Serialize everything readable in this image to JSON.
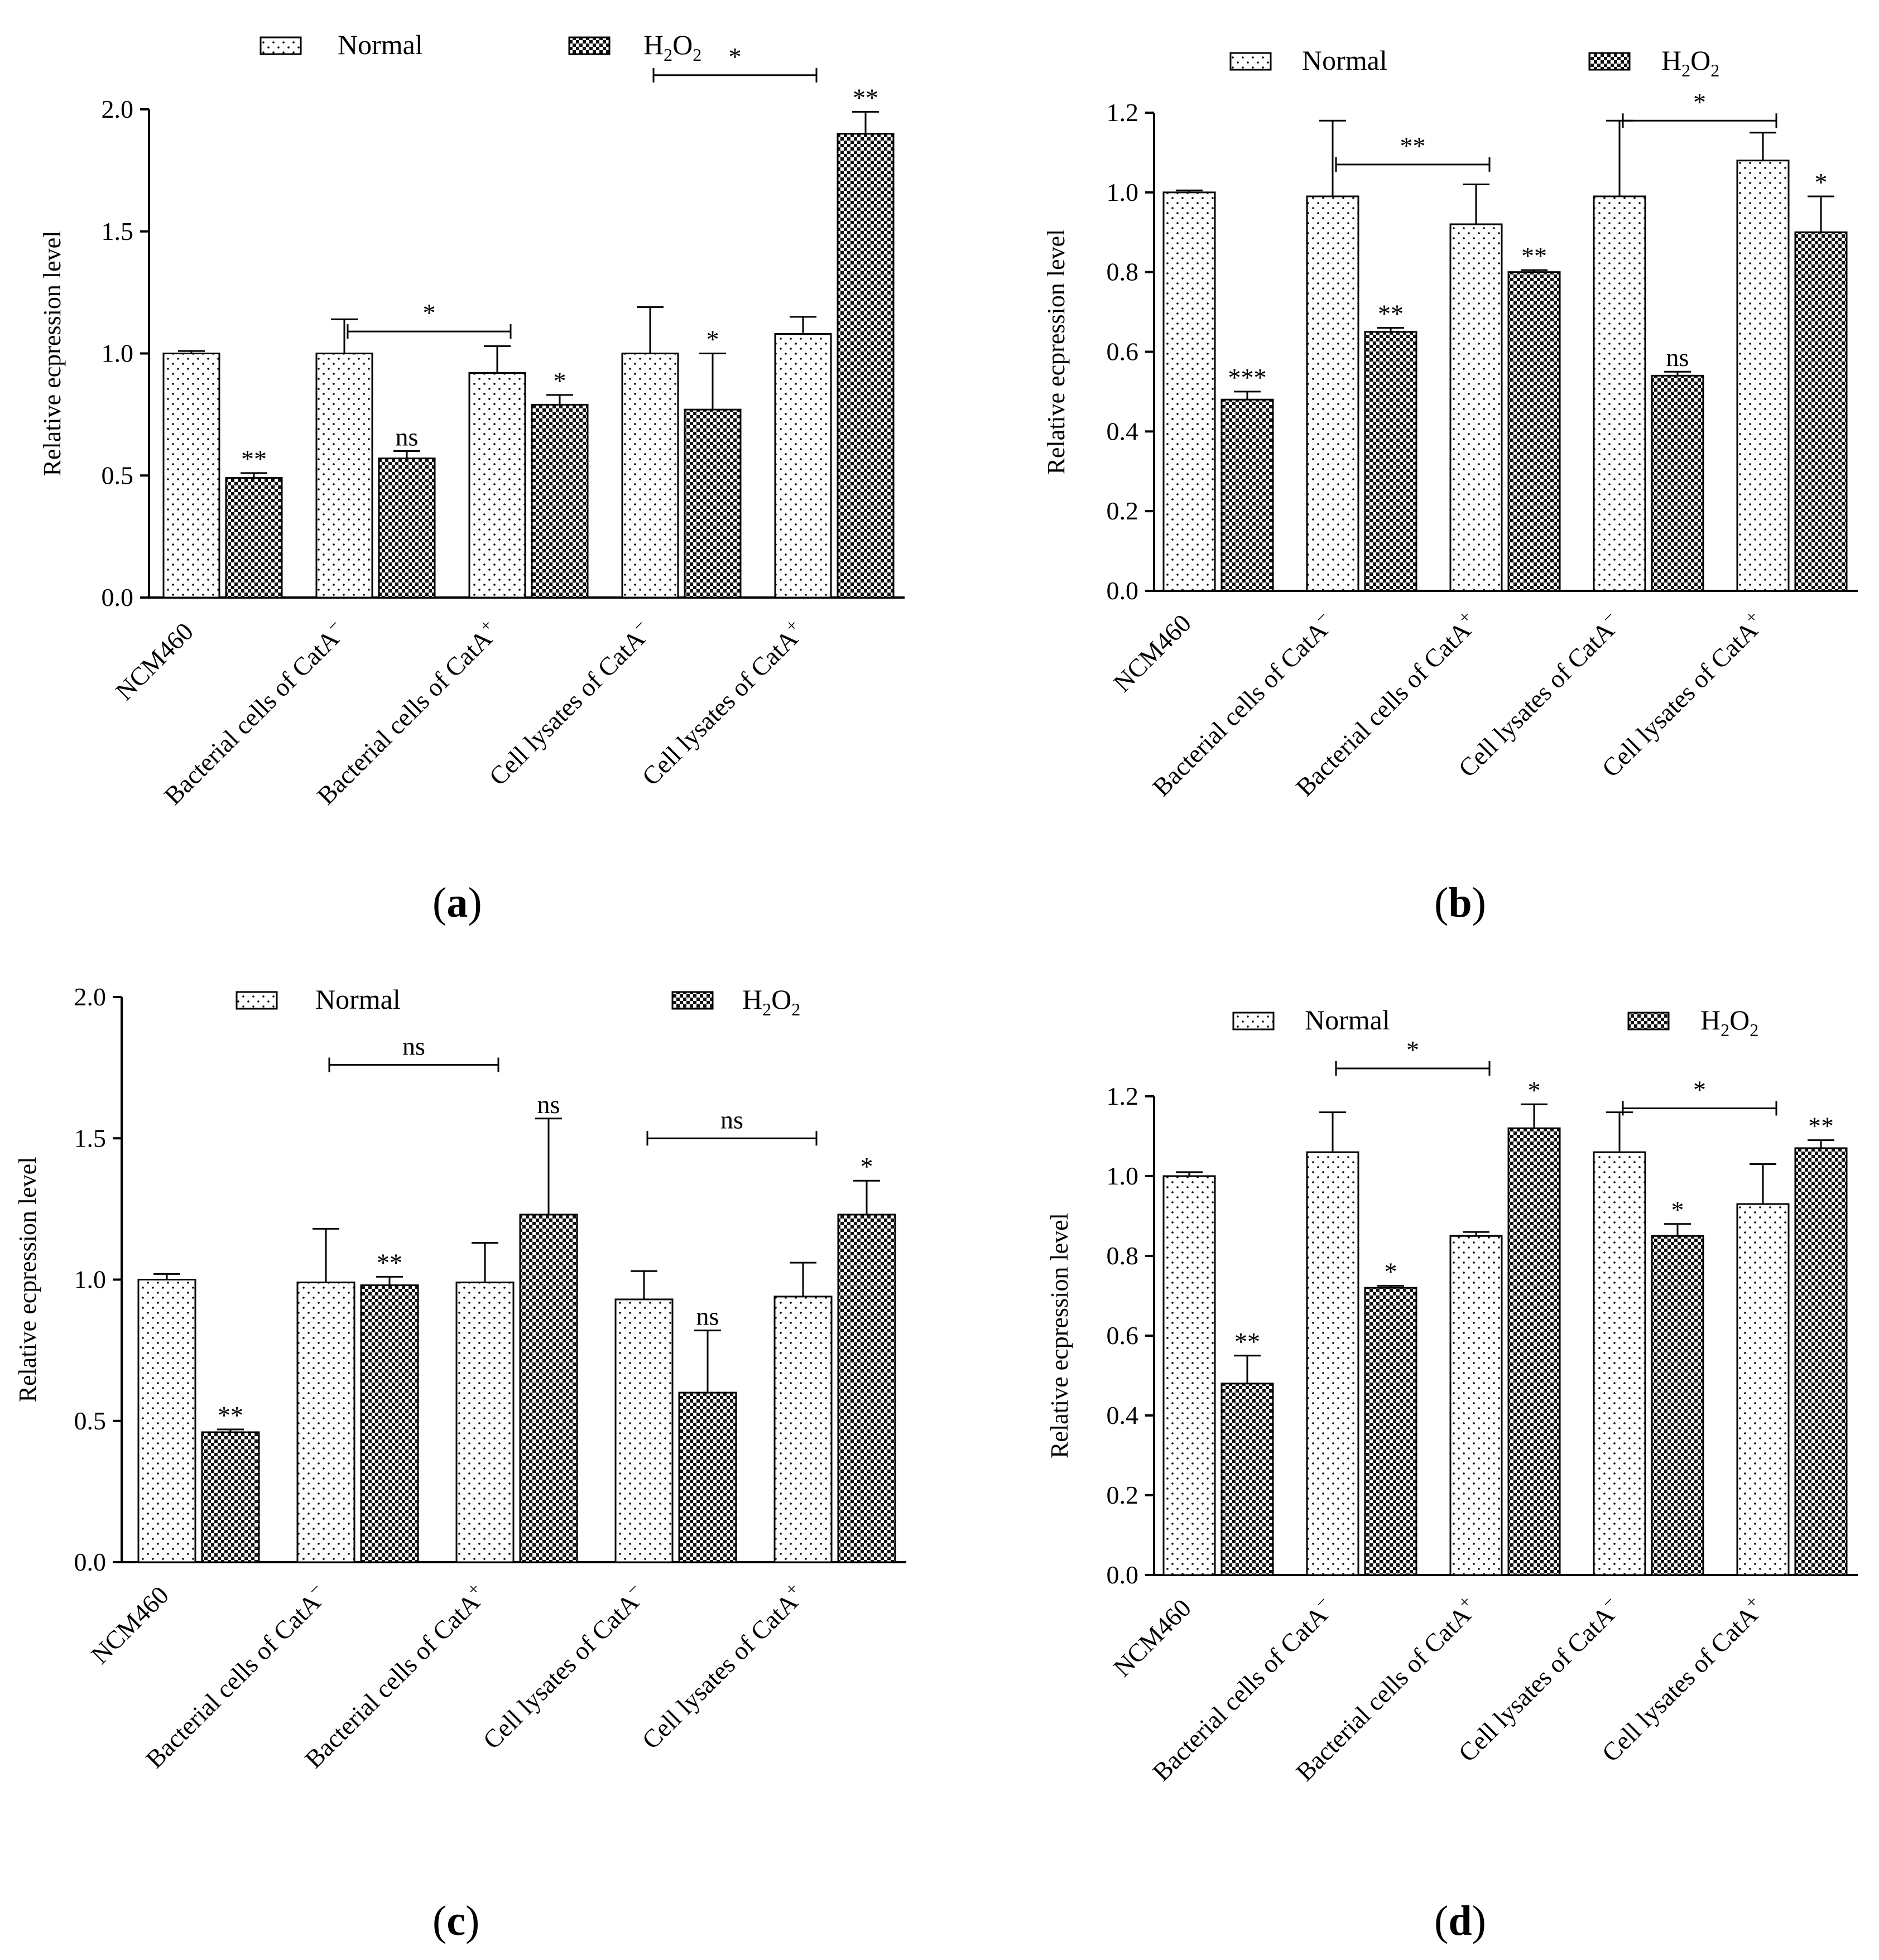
{
  "figure": {
    "panel_labels": {
      "a": {
        "open": "(",
        "letter": "a",
        "close": ")"
      },
      "b": {
        "open": "(",
        "letter": "b",
        "close": ")"
      },
      "c": {
        "open": "(",
        "letter": "c",
        "close": ")"
      },
      "d": {
        "open": "(",
        "letter": "d",
        "close": ")"
      }
    }
  },
  "colors": {
    "axis": "#000000",
    "normal_fill": "#ffffff",
    "h2o2_fill": "#000000"
  },
  "chart_data": [
    {
      "id": "a",
      "type": "bar",
      "ylabel": "Relative ecpression level",
      "ylim": [
        0,
        2.0
      ],
      "yticks": [
        "0.0",
        "0.5",
        "1.0",
        "1.5",
        "2.0"
      ],
      "yticks_values": [
        0,
        0.5,
        1.0,
        1.5,
        2.0
      ],
      "categories": [
        {
          "main": "NCM460",
          "sup": ""
        },
        {
          "main": "Bacterial cells of CatA",
          "sup": "−"
        },
        {
          "main": "Bacterial cells of CatA",
          "sup": "+"
        },
        {
          "main": "Cell lysates of CatA",
          "sup": "−"
        },
        {
          "main": "Cell lysates of CatA",
          "sup": "+"
        }
      ],
      "legend": {
        "normal": "Normal",
        "h2o2": {
          "base": "H",
          "sub1": "2",
          "mid": "O",
          "sub2": "2"
        }
      },
      "series": [
        {
          "name": "Normal",
          "values": [
            1.0,
            1.0,
            0.92,
            1.0,
            1.08
          ],
          "errors": [
            0.01,
            0.14,
            0.11,
            0.19,
            0.07
          ],
          "labels": [
            "",
            "",
            "",
            "",
            ""
          ]
        },
        {
          "name": "H2O2",
          "values": [
            0.49,
            0.57,
            0.79,
            0.77,
            1.9
          ],
          "errors": [
            0.02,
            0.03,
            0.04,
            0.23,
            0.09
          ],
          "labels": [
            "**",
            "ns",
            "*",
            "*",
            "**"
          ]
        }
      ],
      "brackets": [
        {
          "from": 1,
          "to": 2,
          "y": 1.09,
          "label": "*"
        },
        {
          "from": 3,
          "to": 4,
          "y": 2.14,
          "label": "*"
        }
      ]
    },
    {
      "id": "b",
      "type": "bar",
      "ylabel": "Relative ecpression level",
      "ylim": [
        0,
        1.2
      ],
      "yticks": [
        "0.0",
        "0.2",
        "0.4",
        "0.6",
        "0.8",
        "1.0",
        "1.2"
      ],
      "yticks_values": [
        0,
        0.2,
        0.4,
        0.6,
        0.8,
        1.0,
        1.2
      ],
      "categories": [
        {
          "main": "NCM460",
          "sup": ""
        },
        {
          "main": "Bacterial cells of CatA",
          "sup": "−"
        },
        {
          "main": "Bacterial cells of CatA",
          "sup": "+"
        },
        {
          "main": "Cell lysates of CatA",
          "sup": "−"
        },
        {
          "main": "Cell lysates of CatA",
          "sup": "+"
        }
      ],
      "legend": {
        "normal": "Normal",
        "h2o2": {
          "base": "H",
          "sub1": "2",
          "mid": "O",
          "sub2": "2"
        }
      },
      "series": [
        {
          "name": "Normal",
          "values": [
            1.0,
            0.99,
            0.92,
            0.99,
            1.08
          ],
          "errors": [
            0.005,
            0.19,
            0.1,
            0.19,
            0.07
          ],
          "labels": [
            "",
            "",
            "",
            "",
            ""
          ]
        },
        {
          "name": "H2O2",
          "values": [
            0.48,
            0.65,
            0.8,
            0.54,
            0.9
          ],
          "errors": [
            0.02,
            0.01,
            0.005,
            0.01,
            0.09
          ],
          "labels": [
            "***",
            "**",
            "**",
            "ns",
            "*"
          ]
        }
      ],
      "brackets": [
        {
          "from": 1,
          "to": 2,
          "y": 1.07,
          "label": "**"
        },
        {
          "from": 3,
          "to": 4,
          "y": 1.18,
          "label": "*"
        }
      ]
    },
    {
      "id": "c",
      "type": "bar",
      "ylabel": "Relative ecpression level",
      "ylim": [
        0,
        2.0
      ],
      "yticks": [
        "0.0",
        "0.5",
        "1.0",
        "1.5",
        "2.0"
      ],
      "yticks_values": [
        0,
        0.5,
        1.0,
        1.5,
        2.0
      ],
      "categories": [
        {
          "main": "NCM460",
          "sup": ""
        },
        {
          "main": "Bacterial cells of CatA",
          "sup": "−"
        },
        {
          "main": "Bacterial cells of CatA",
          "sup": "+"
        },
        {
          "main": "Cell lysates of CatA",
          "sup": "−"
        },
        {
          "main": "Cell lysates of CatA",
          "sup": "+"
        }
      ],
      "legend": {
        "normal": "Normal",
        "h2o2": {
          "base": "H",
          "sub1": "2",
          "mid": "O",
          "sub2": "2"
        }
      },
      "series": [
        {
          "name": "Normal",
          "values": [
            1.0,
            0.99,
            0.99,
            0.93,
            0.94
          ],
          "errors": [
            0.02,
            0.19,
            0.14,
            0.1,
            0.12
          ],
          "labels": [
            "",
            "",
            "",
            "",
            ""
          ]
        },
        {
          "name": "H2O2",
          "values": [
            0.46,
            0.98,
            1.23,
            0.6,
            1.23
          ],
          "errors": [
            0.01,
            0.03,
            0.34,
            0.22,
            0.12
          ],
          "labels": [
            "**",
            "**",
            "ns",
            "ns",
            "*"
          ]
        }
      ],
      "brackets": [
        {
          "from": 1,
          "to": 2,
          "y": 1.76,
          "label": "ns"
        },
        {
          "from": 3,
          "to": 4,
          "y": 1.5,
          "label": "ns"
        }
      ]
    },
    {
      "id": "d",
      "type": "bar",
      "ylabel": "Relative ecpression level",
      "ylim": [
        0,
        1.2
      ],
      "yticks": [
        "0.0",
        "0.2",
        "0.4",
        "0.6",
        "0.8",
        "1.0",
        "1.2"
      ],
      "yticks_values": [
        0,
        0.2,
        0.4,
        0.6,
        0.8,
        1.0,
        1.2
      ],
      "categories": [
        {
          "main": "NCM460",
          "sup": ""
        },
        {
          "main": "Bacterial cells of CatA",
          "sup": "−"
        },
        {
          "main": "Bacterial cells of CatA",
          "sup": "+"
        },
        {
          "main": "Cell lysates of CatA",
          "sup": "−"
        },
        {
          "main": "Cell lysates of CatA",
          "sup": "+"
        }
      ],
      "legend": {
        "normal": "Normal",
        "h2o2": {
          "base": "H",
          "sub1": "2",
          "mid": "O",
          "sub2": "2"
        }
      },
      "series": [
        {
          "name": "Normal",
          "values": [
            1.0,
            1.06,
            0.85,
            1.06,
            0.93
          ],
          "errors": [
            0.01,
            0.1,
            0.01,
            0.1,
            0.1
          ],
          "labels": [
            "",
            "",
            "",
            "",
            ""
          ]
        },
        {
          "name": "H2O2",
          "values": [
            0.48,
            0.72,
            1.12,
            0.85,
            1.07
          ],
          "errors": [
            0.07,
            0.005,
            0.06,
            0.03,
            0.02
          ],
          "labels": [
            "**",
            "*",
            "*",
            "*",
            "**"
          ]
        }
      ],
      "brackets": [
        {
          "from": 1,
          "to": 2,
          "y": 1.27,
          "label": "*"
        },
        {
          "from": 3,
          "to": 4,
          "y": 1.17,
          "label": "*"
        }
      ]
    }
  ]
}
